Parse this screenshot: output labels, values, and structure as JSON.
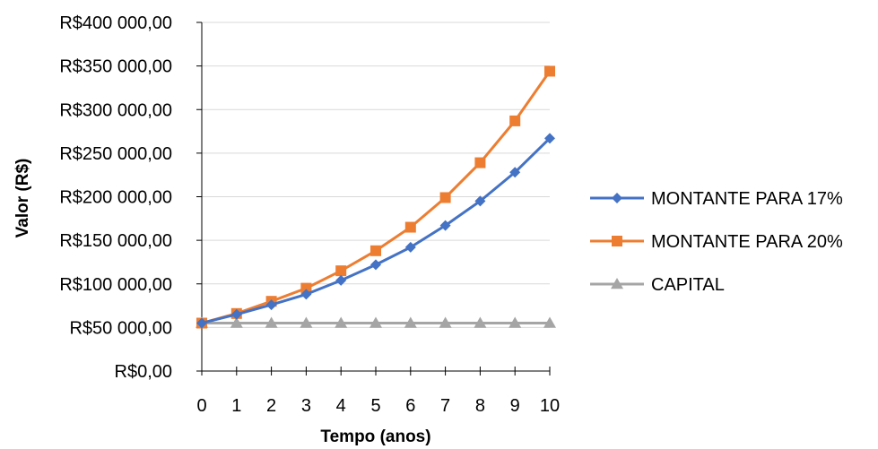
{
  "chart_data": {
    "type": "line",
    "title": "",
    "xlabel": "Tempo (anos)",
    "ylabel": "Valor (R$)",
    "categories": [
      "0",
      "1",
      "2",
      "3",
      "4",
      "5",
      "6",
      "7",
      "8",
      "9",
      "10"
    ],
    "ylim": [
      0,
      400000
    ],
    "yticks": [
      {
        "value": 0,
        "label": "R$0,00"
      },
      {
        "value": 50000,
        "label": "R$50 000,00"
      },
      {
        "value": 100000,
        "label": "R$100 000,00"
      },
      {
        "value": 150000,
        "label": "R$150 000,00"
      },
      {
        "value": 200000,
        "label": "R$200 000,00"
      },
      {
        "value": 250000,
        "label": "R$250 000,00"
      },
      {
        "value": 300000,
        "label": "R$300 000,00"
      },
      {
        "value": 350000,
        "label": "R$350 000,00"
      },
      {
        "value": 400000,
        "label": "R$400 000,00"
      }
    ],
    "grid": true,
    "legend_position": "right",
    "series": [
      {
        "name": "MONTANTE PARA  17%",
        "color": "#4472C4",
        "marker": "diamond",
        "values": [
          55000,
          65000,
          76000,
          88000,
          104000,
          122000,
          142000,
          167000,
          195000,
          228000,
          267000
        ]
      },
      {
        "name": "MONTANTE PARA 20%",
        "color": "#ED7D31",
        "marker": "square",
        "values": [
          55000,
          66000,
          80000,
          95000,
          115000,
          138000,
          165000,
          199000,
          239000,
          287000,
          344000
        ]
      },
      {
        "name": "CAPITAL",
        "color": "#A5A5A5",
        "marker": "triangle",
        "values": [
          55000,
          55000,
          55000,
          55000,
          55000,
          55000,
          55000,
          55000,
          55000,
          55000,
          55000
        ]
      }
    ]
  }
}
